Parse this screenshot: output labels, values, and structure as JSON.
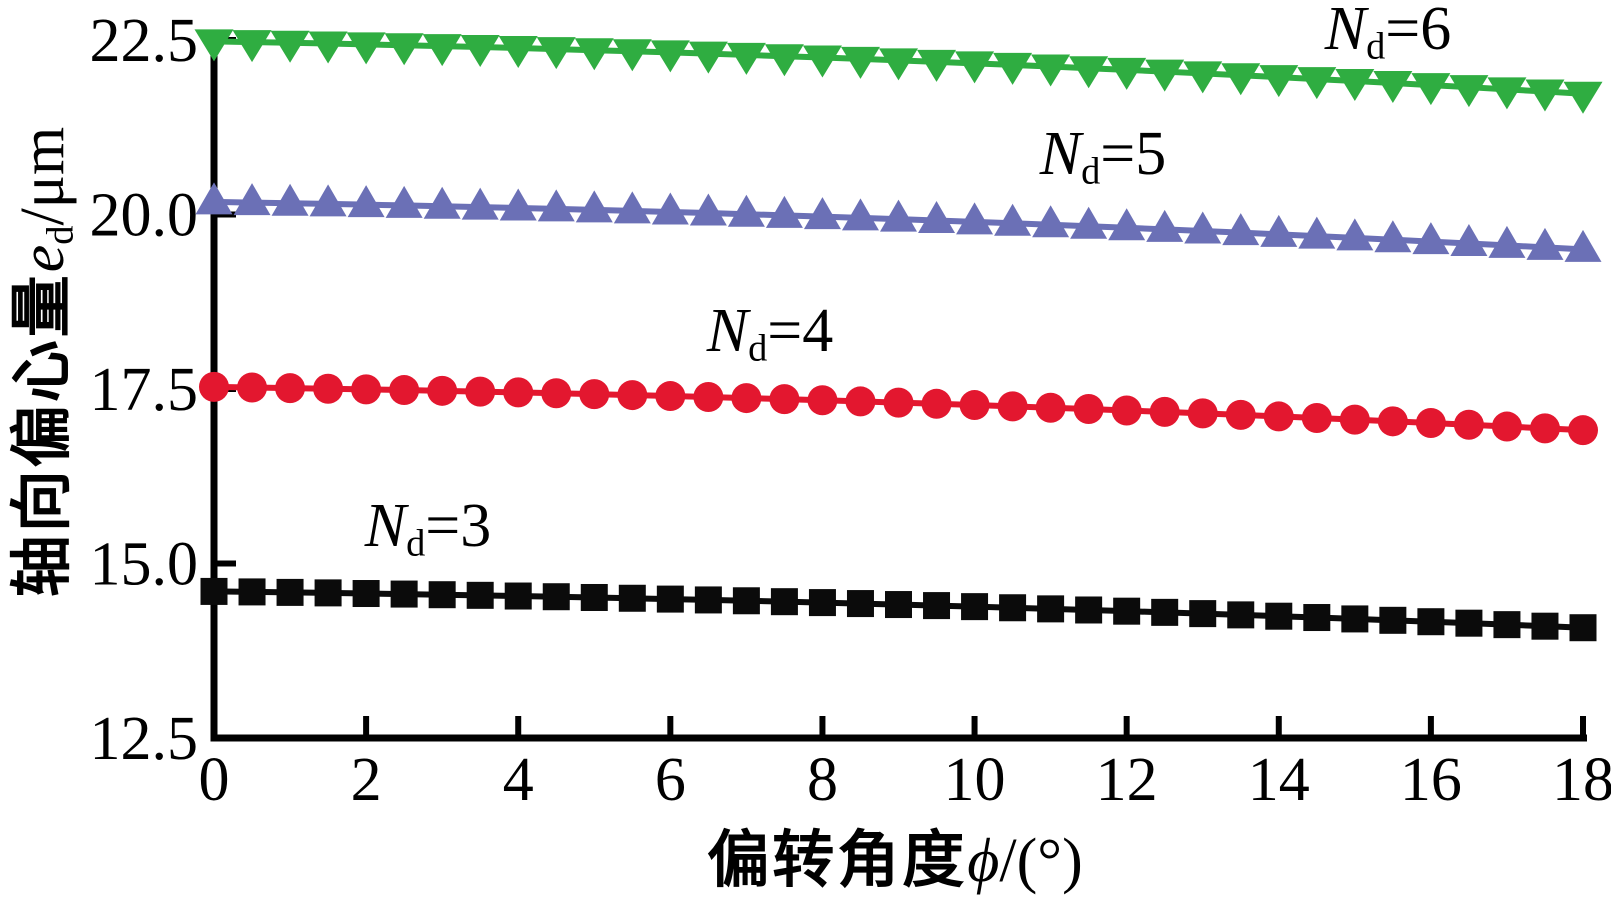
{
  "figure": {
    "background": "#ffffff",
    "axis_color": "#000000"
  },
  "axes": {
    "y": {
      "cjk": "轴向偏心量",
      "var": "e",
      "sub": "d",
      "unit": "/μm",
      "ticks": [
        "22.5",
        "20.0",
        "17.5",
        "15.0",
        "12.5"
      ],
      "tick_values": [
        22.5,
        20.0,
        17.5,
        15.0,
        12.5
      ]
    },
    "x": {
      "cjk": "偏转角度",
      "var": "ϕ",
      "unit": "/(°)",
      "ticks": [
        "0",
        "2",
        "4",
        "6",
        "8",
        "10",
        "12",
        "14",
        "16",
        "18"
      ],
      "tick_values": [
        0,
        2,
        4,
        6,
        8,
        10,
        12,
        14,
        16,
        18
      ]
    }
  },
  "annotations": [
    {
      "var": "N",
      "sub": "d",
      "eq": "=6"
    },
    {
      "var": "N",
      "sub": "d",
      "eq": "=5"
    },
    {
      "var": "N",
      "sub": "d",
      "eq": "=4"
    },
    {
      "var": "N",
      "sub": "d",
      "eq": "=3"
    }
  ],
  "chart_data": {
    "type": "line",
    "title": "",
    "xlabel": "偏转角度 ϕ/(°)",
    "ylabel": "轴向偏心量 ed/μm",
    "xlim": [
      0,
      18
    ],
    "ylim": [
      12.5,
      22.5
    ],
    "grid": false,
    "legend_position": "inline-labels-above-each-series",
    "x": [
      0,
      0.5,
      1,
      1.5,
      2,
      2.5,
      3,
      3.5,
      4,
      4.5,
      5,
      5.5,
      6,
      6.5,
      7,
      7.5,
      8,
      8.5,
      9,
      9.5,
      10,
      10.5,
      11,
      11.5,
      12,
      12.5,
      13,
      13.5,
      14,
      14.5,
      15,
      15.5,
      16,
      16.5,
      17,
      17.5,
      18
    ],
    "series": [
      {
        "name": "Nd=6",
        "marker": "triangle-down",
        "color": "#2fad41",
        "values": [
          22.48,
          22.47,
          22.46,
          22.449,
          22.437,
          22.425,
          22.412,
          22.399,
          22.385,
          22.37,
          22.354,
          22.338,
          22.322,
          22.304,
          22.286,
          22.268,
          22.249,
          22.229,
          22.208,
          22.187,
          22.165,
          22.143,
          22.12,
          22.096,
          22.072,
          22.047,
          22.021,
          21.995,
          21.968,
          21.94,
          21.912,
          21.884,
          21.854,
          21.824,
          21.793,
          21.762,
          21.73
        ]
      },
      {
        "name": "Nd=5",
        "marker": "triangle-up",
        "color": "#6b70b6",
        "values": [
          20.18,
          20.171,
          20.162,
          20.152,
          20.141,
          20.13,
          20.119,
          20.106,
          20.094,
          20.08,
          20.066,
          20.052,
          20.036,
          20.021,
          20.004,
          19.988,
          19.97,
          19.952,
          19.934,
          19.914,
          19.895,
          19.874,
          19.853,
          19.832,
          19.81,
          19.787,
          19.764,
          19.74,
          19.716,
          19.691,
          19.665,
          19.639,
          19.612,
          19.585,
          19.557,
          19.529,
          19.5
        ]
      },
      {
        "name": "Nd=4",
        "marker": "circle",
        "color": "#e3172f",
        "values": [
          17.53,
          17.522,
          17.513,
          17.504,
          17.495,
          17.485,
          17.474,
          17.463,
          17.451,
          17.439,
          17.426,
          17.413,
          17.399,
          17.385,
          17.37,
          17.355,
          17.339,
          17.322,
          17.305,
          17.288,
          17.27,
          17.251,
          17.232,
          17.213,
          17.192,
          17.172,
          17.151,
          17.129,
          17.107,
          17.084,
          17.061,
          17.037,
          17.013,
          16.988,
          16.962,
          16.936,
          16.91
        ]
      },
      {
        "name": "Nd=3",
        "marker": "square",
        "color": "#0b0b0b",
        "values": [
          14.6,
          14.593,
          14.586,
          14.579,
          14.57,
          14.562,
          14.553,
          14.544,
          14.534,
          14.524,
          14.513,
          14.502,
          14.49,
          14.478,
          14.466,
          14.453,
          14.44,
          14.426,
          14.412,
          14.397,
          14.382,
          14.366,
          14.35,
          14.334,
          14.317,
          14.3,
          14.282,
          14.264,
          14.245,
          14.226,
          14.206,
          14.186,
          14.166,
          14.145,
          14.124,
          14.102,
          14.08
        ]
      }
    ]
  }
}
